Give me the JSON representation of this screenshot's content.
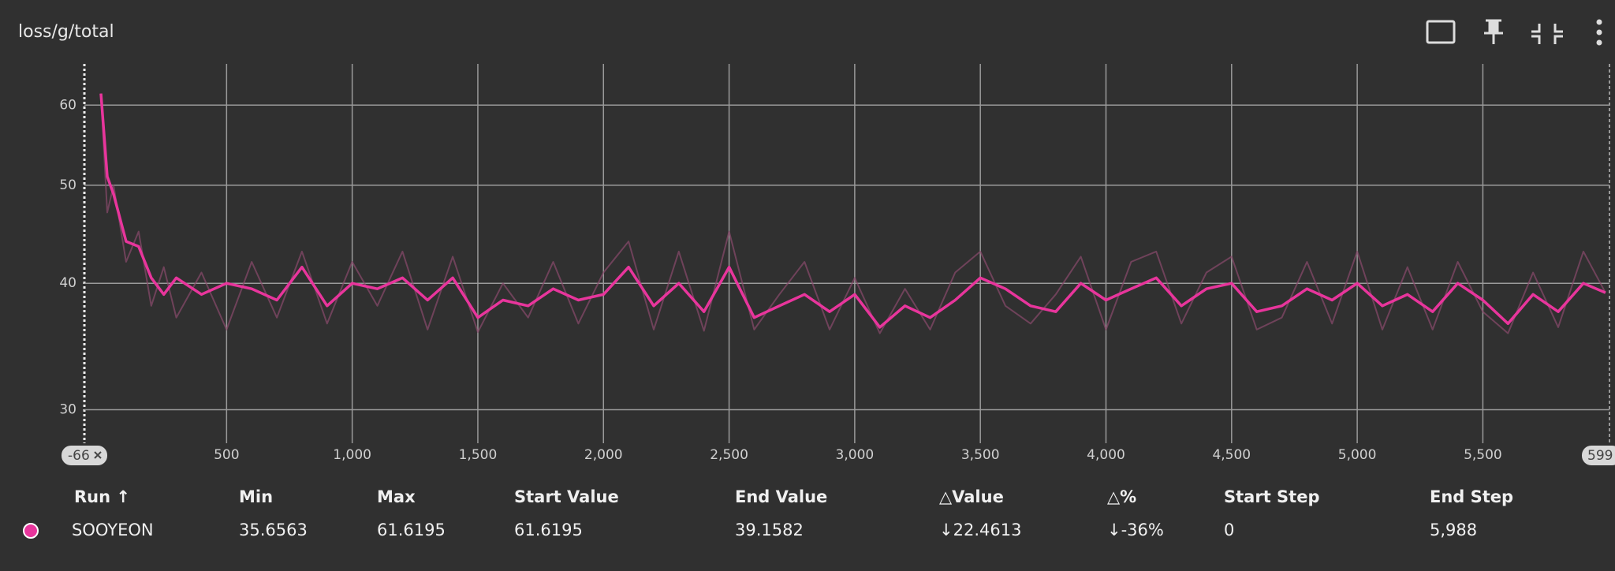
{
  "card_title": "loss/g/total",
  "chart_data": {
    "type": "line",
    "x": [
      0,
      25,
      50,
      100,
      150,
      200,
      250,
      300,
      400,
      500,
      600,
      700,
      800,
      900,
      1000,
      1100,
      1200,
      1300,
      1400,
      1500,
      1600,
      1700,
      1800,
      1900,
      2000,
      2100,
      2200,
      2300,
      2400,
      2500,
      2600,
      2700,
      2800,
      2900,
      3000,
      3100,
      3200,
      3300,
      3400,
      3500,
      3600,
      3700,
      3800,
      3900,
      4000,
      4100,
      4200,
      4300,
      4400,
      4500,
      4600,
      4700,
      4800,
      4900,
      5000,
      5100,
      5200,
      5300,
      5400,
      5500,
      5600,
      5700,
      5800,
      5900,
      5988
    ],
    "series": [
      {
        "name": "SOOYEON",
        "color": "#e8359c",
        "values": [
          61.6,
          51,
          49,
          44,
          43.5,
          40.5,
          39,
          40.5,
          39,
          40,
          39.5,
          38.5,
          41.5,
          38,
          40,
          39.5,
          40.5,
          38.5,
          40.5,
          37,
          38.5,
          38,
          39.5,
          38.5,
          39,
          41.5,
          38,
          40,
          37.5,
          41.5,
          37,
          38,
          39,
          37.5,
          39,
          36.2,
          38,
          37,
          38.5,
          40.5,
          39.5,
          38,
          37.5,
          40,
          38.5,
          39.5,
          40.5,
          38,
          39.5,
          40,
          37.5,
          38,
          39.5,
          38.5,
          40,
          38,
          39,
          37.5,
          40,
          38.5,
          36.5,
          39,
          37.5,
          40,
          39.16
        ]
      }
    ],
    "raw": {
      "color": "#8a4a6c",
      "values": [
        61.6,
        47,
        50,
        42,
        45,
        38,
        41.5,
        37,
        41,
        36,
        42,
        37,
        43,
        36.5,
        42,
        38,
        43,
        36,
        42.5,
        35.8,
        40,
        37,
        42,
        36.5,
        41,
        44,
        36,
        43,
        35.9,
        45,
        36,
        39,
        42,
        36,
        40.5,
        35.7,
        39.5,
        36,
        41,
        43,
        38,
        36.5,
        39,
        42.5,
        36,
        42,
        43,
        36.5,
        41,
        42.5,
        36,
        37,
        42,
        36.5,
        43,
        36,
        41.5,
        36,
        42,
        37.5,
        35.7,
        41,
        36.2,
        43,
        39.16
      ]
    },
    "ylog": true,
    "ylim": [
      27.8,
      65.9
    ],
    "yticks": [
      30,
      40,
      50,
      60
    ],
    "xlim": [
      -66,
      6004
    ],
    "xticks": [
      {
        "value": 500,
        "label": "500"
      },
      {
        "value": 1000,
        "label": "1,000"
      },
      {
        "value": 1500,
        "label": "1,500"
      },
      {
        "value": 2000,
        "label": "2,000"
      },
      {
        "value": 2500,
        "label": "2,500"
      },
      {
        "value": 3000,
        "label": "3,000"
      },
      {
        "value": 3500,
        "label": "3,500"
      },
      {
        "value": 4000,
        "label": "4,000"
      },
      {
        "value": 4500,
        "label": "4,500"
      },
      {
        "value": 5000,
        "label": "5,000"
      },
      {
        "value": 5500,
        "label": "5,500"
      }
    ],
    "range_labels": [
      "-66",
      "599"
    ],
    "grid": true
  },
  "table": {
    "columns": [
      "Run ↑",
      "Min",
      "Max",
      "Start Value",
      "End Value",
      "△Value",
      "△%",
      "Start Step",
      "End Step"
    ],
    "rows": [
      [
        "SOOYEON",
        "35.6563",
        "61.6195",
        "61.6195",
        "39.1582",
        "↓22.4613",
        "↓-36%",
        "0",
        "5,988"
      ]
    ]
  }
}
